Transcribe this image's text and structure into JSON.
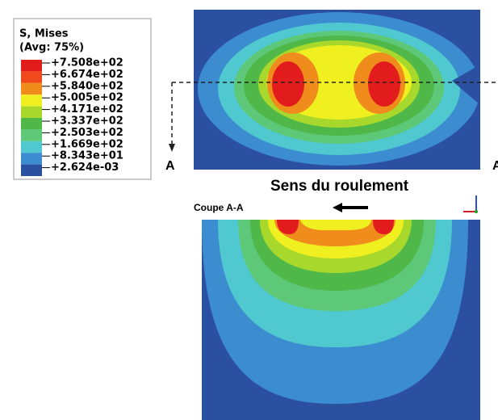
{
  "legend": {
    "title": "S, Mises",
    "subtitle": "(Avg: 75%)",
    "labels": [
      "+7.508e+02",
      "+6.674e+02",
      "+5.840e+02",
      "+5.005e+02",
      "+4.171e+02",
      "+3.337e+02",
      "+2.503e+02",
      "+1.669e+02",
      "+8.343e+01",
      "+2.624e-03"
    ]
  },
  "section_mark_left": "A",
  "section_mark_right": "A",
  "direction_label": "Sens du roulement",
  "section_title": "Coupe A-A"
}
